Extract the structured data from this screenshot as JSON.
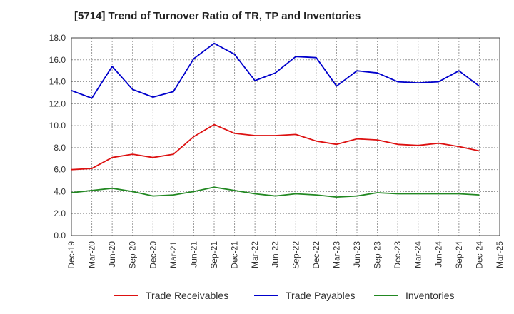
{
  "chart_data": {
    "type": "line",
    "title": "[5714]  Trend of Turnover Ratio of TR, TP and Inventories",
    "xlabel": "",
    "ylabel": "",
    "ylim": [
      0,
      18
    ],
    "yticks": [
      "0.0",
      "2.0",
      "4.0",
      "6.0",
      "8.0",
      "10.0",
      "12.0",
      "14.0",
      "16.0",
      "18.0"
    ],
    "categories": [
      "Dec-19",
      "Mar-20",
      "Jun-20",
      "Sep-20",
      "Dec-20",
      "Mar-21",
      "Jun-21",
      "Sep-21",
      "Dec-21",
      "Mar-22",
      "Jun-22",
      "Sep-22",
      "Dec-22",
      "Mar-23",
      "Jun-23",
      "Sep-23",
      "Dec-23",
      "Mar-24",
      "Jun-24",
      "Sep-24",
      "Dec-24",
      "Mar-25"
    ],
    "grid": true,
    "legend_position": "bottom",
    "series": [
      {
        "name": "Trade Receivables",
        "color": "#dd1111",
        "values": [
          6.0,
          6.1,
          7.1,
          7.4,
          7.1,
          7.4,
          9.0,
          10.1,
          9.3,
          9.1,
          9.1,
          9.2,
          8.6,
          8.3,
          8.8,
          8.7,
          8.3,
          8.2,
          8.4,
          8.1,
          7.7,
          null
        ]
      },
      {
        "name": "Trade Payables",
        "color": "#0000cc",
        "values": [
          13.2,
          12.5,
          15.4,
          13.3,
          12.6,
          13.1,
          16.1,
          17.5,
          16.5,
          14.1,
          14.8,
          16.3,
          16.2,
          13.6,
          15.0,
          14.8,
          14.0,
          13.9,
          14.0,
          15.0,
          13.6,
          null
        ]
      },
      {
        "name": "Inventories",
        "color": "#228822",
        "values": [
          3.9,
          4.1,
          4.3,
          4.0,
          3.6,
          3.7,
          4.0,
          4.4,
          4.1,
          3.8,
          3.6,
          3.8,
          3.7,
          3.5,
          3.6,
          3.9,
          3.8,
          3.8,
          3.8,
          3.8,
          3.7,
          null
        ]
      }
    ]
  }
}
